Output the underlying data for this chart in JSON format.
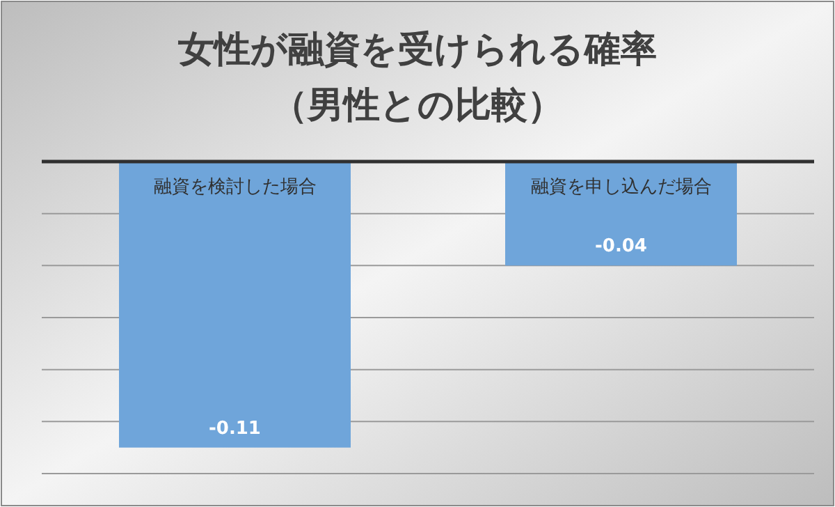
{
  "chart_data": {
    "type": "bar",
    "title": "女性が融資を受けられる確率",
    "subtitle": "（男性との比較）",
    "categories": [
      "融資を検討した場合",
      "融資を申し込んだ場合"
    ],
    "values": [
      -0.11,
      -0.04
    ],
    "color": "#6fa5da",
    "data_labels": true,
    "ylim": [
      -0.12,
      0
    ],
    "yticks": [
      {
        "value": 0,
        "label": null
      },
      {
        "value": -0.02,
        "label": null
      },
      {
        "value": -0.04,
        "label": null
      },
      {
        "value": -0.06,
        "label": null
      },
      {
        "value": -0.08,
        "label": null
      },
      {
        "value": -0.1,
        "label": null
      },
      {
        "value": -0.12,
        "label": null
      }
    ],
    "grid": "y"
  }
}
